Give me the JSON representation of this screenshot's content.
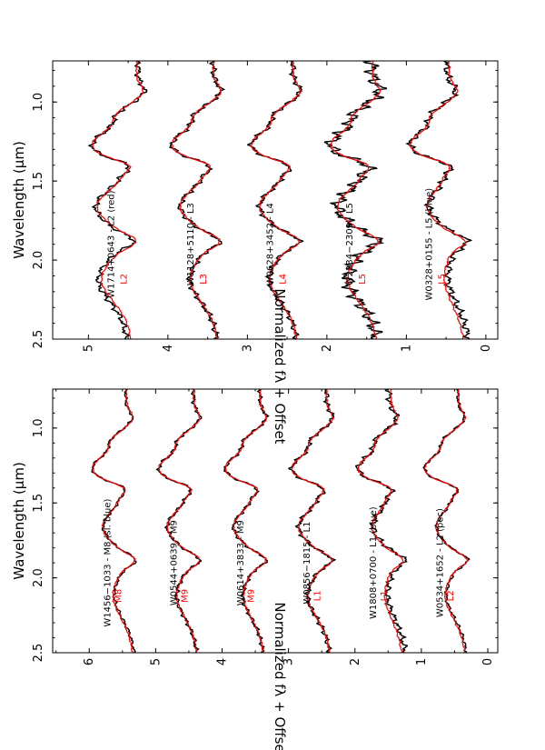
{
  "chart_data": [
    {
      "type": "line",
      "title": "",
      "xlabel": "Wavelength (μm)",
      "ylabel": "Normalized fλ + Offset",
      "xlim": [
        0.74,
        2.5
      ],
      "ylim": [
        -0.15,
        6.55
      ],
      "xticks": [
        "1.0",
        "1.5",
        "2.0",
        "2.5"
      ],
      "xtick_values": [
        1.0,
        1.5,
        2.0,
        2.5
      ],
      "yticks": [
        "0",
        "1",
        "2",
        "3",
        "4",
        "5",
        "6"
      ],
      "ytick_values": [
        0,
        1,
        2,
        3,
        4,
        5,
        6
      ],
      "series_styles": {
        "observed": "#000000",
        "standard": "#ff0000"
      },
      "spectra": [
        {
          "name": "W1456−1033 - M8 (sl. blue)",
          "standard": "M8",
          "offset": 5.0,
          "slope": -0.05,
          "noise": 0.03,
          "flux_hband": 0.7,
          "flux_kband": 0.5
        },
        {
          "name": "W0544+0639 - M9",
          "standard": "M9",
          "offset": 4.0,
          "slope": 0.0,
          "noise": 0.04,
          "flux_hband": 0.72,
          "flux_kband": 0.52
        },
        {
          "name": "W0614+3833 - M9",
          "standard": "M9",
          "offset": 3.0,
          "slope": 0.0,
          "noise": 0.04,
          "flux_hband": 0.72,
          "flux_kband": 0.52
        },
        {
          "name": "W0856−1815 - L1",
          "standard": "L1",
          "offset": 2.0,
          "slope": 0.0,
          "noise": 0.05,
          "flux_hband": 0.74,
          "flux_kband": 0.55
        },
        {
          "name": "W1808+0700 - L1 (blue)",
          "standard": "L1",
          "offset": 1.0,
          "slope": -0.12,
          "noise": 0.06,
          "flux_hband": 0.66,
          "flux_kband": 0.44
        },
        {
          "name": "W0534+1652 - L2 (pec)",
          "standard": "L2",
          "offset": 0.0,
          "slope": -0.05,
          "noise": 0.03,
          "flux_hband": 0.68,
          "flux_kband": 0.5
        }
      ]
    },
    {
      "type": "line",
      "title": "",
      "xlabel": "Wavelength (μm)",
      "ylabel": "Normalized fλ + Offset",
      "xlim": [
        0.74,
        2.5
      ],
      "ylim": [
        -0.15,
        5.45
      ],
      "xticks": [
        "1.0",
        "1.5",
        "2.0",
        "2.5"
      ],
      "xtick_values": [
        1.0,
        1.5,
        2.0,
        2.5
      ],
      "yticks": [
        "0",
        "1",
        "2",
        "3",
        "4",
        "5"
      ],
      "ytick_values": [
        0,
        1,
        2,
        3,
        4,
        5
      ],
      "series_styles": {
        "observed": "#000000",
        "standard": "#ff0000"
      },
      "spectra": [
        {
          "name": "W1714+0643 - L2 (red)",
          "standard": "L2",
          "offset": 4.0,
          "slope": 0.12,
          "noise": 0.05,
          "flux_hband": 0.76,
          "flux_kband": 0.62
        },
        {
          "name": "W1128+5110 - L3",
          "standard": "L3",
          "offset": 3.0,
          "slope": 0.0,
          "noise": 0.05,
          "flux_hband": 0.74,
          "flux_kband": 0.56
        },
        {
          "name": "W0628+3452 - L4",
          "standard": "L4",
          "offset": 2.0,
          "slope": 0.0,
          "noise": 0.05,
          "flux_hband": 0.74,
          "flux_kband": 0.56
        },
        {
          "name": "W2234−2309 - L5",
          "standard": "L5",
          "offset": 1.0,
          "slope": 0.0,
          "noise": 0.12,
          "flux_hband": 0.76,
          "flux_kband": 0.58
        },
        {
          "name": "W0328+0155 - L5 (blue)",
          "standard": "L5",
          "offset": 0.0,
          "slope": -0.14,
          "noise": 0.06,
          "flux_hband": 0.66,
          "flux_kband": 0.42
        }
      ]
    }
  ]
}
